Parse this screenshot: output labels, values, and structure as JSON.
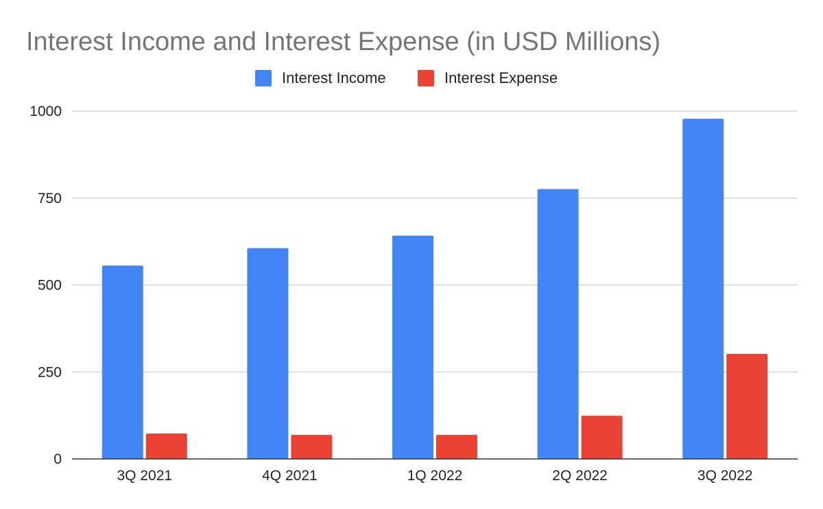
{
  "chart_data": {
    "type": "bar",
    "title": "Interest Income and Interest Expense (in USD Millions)",
    "xlabel": "",
    "ylabel": "",
    "categories": [
      "3Q 2021",
      "4Q 2021",
      "1Q 2022",
      "2Q 2022",
      "3Q 2022"
    ],
    "series": [
      {
        "name": "Interest Income",
        "color": "#4285f4",
        "values": [
          556,
          606,
          642,
          776,
          978
        ]
      },
      {
        "name": "Interest Expense",
        "color": "#ea4335",
        "values": [
          73,
          69,
          69,
          124,
          302
        ]
      }
    ],
    "ylim": [
      0,
      1000
    ],
    "yticks": [
      0,
      250,
      500,
      750,
      1000
    ],
    "grid": true,
    "legend_position": "top-center"
  }
}
